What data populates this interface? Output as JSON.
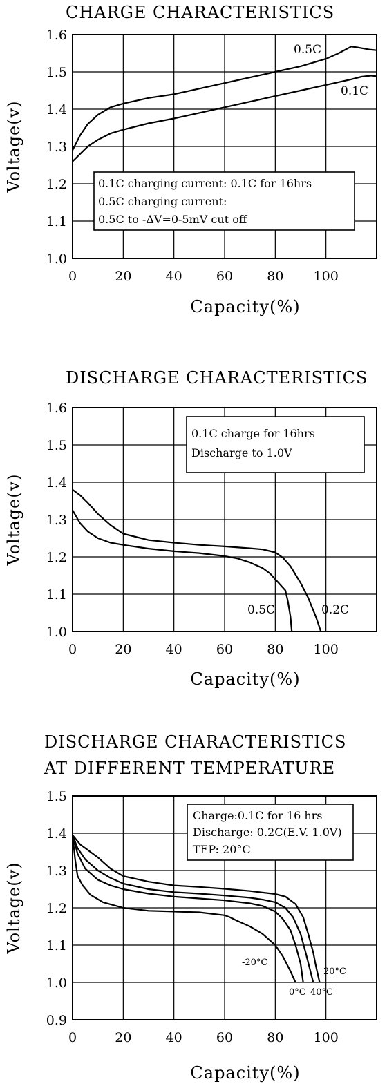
{
  "chart_data": [
    {
      "type": "line",
      "title": "CHARGE CHARACTERISTICS",
      "xlabel": "Capacity(%)",
      "ylabel": "Voltage(v)",
      "xlim": [
        0,
        120
      ],
      "ylim": [
        1.0,
        1.6
      ],
      "xticks": [
        "0",
        "20",
        "40",
        "60",
        "80",
        "100"
      ],
      "yticks": [
        "1.0",
        "1.1",
        "1.2",
        "1.3",
        "1.4",
        "1.5",
        "1.6"
      ],
      "grid": true,
      "annotation": [
        "0.1C charging current: 0.1C for 16hrs",
        "0.5C charging current:",
        "0.5C to -ΔV=0-5mV cut off"
      ],
      "series": [
        {
          "name": "0.5C",
          "x": [
            0,
            3,
            6,
            10,
            15,
            20,
            30,
            40,
            50,
            60,
            70,
            80,
            90,
            100,
            105,
            110,
            113,
            117,
            120
          ],
          "y": [
            1.29,
            1.33,
            1.36,
            1.385,
            1.405,
            1.415,
            1.43,
            1.44,
            1.455,
            1.47,
            1.485,
            1.5,
            1.515,
            1.535,
            1.55,
            1.568,
            1.565,
            1.56,
            1.558
          ]
        },
        {
          "name": "0.1C",
          "x": [
            0,
            3,
            6,
            10,
            15,
            20,
            30,
            40,
            50,
            60,
            70,
            80,
            90,
            100,
            110,
            114,
            118,
            120
          ],
          "y": [
            1.26,
            1.28,
            1.3,
            1.318,
            1.335,
            1.345,
            1.362,
            1.375,
            1.39,
            1.405,
            1.42,
            1.435,
            1.45,
            1.465,
            1.48,
            1.487,
            1.49,
            1.488
          ]
        }
      ]
    },
    {
      "type": "line",
      "title": "DISCHARGE CHARACTERISTICS",
      "xlabel": "Capacity(%)",
      "ylabel": "Voltage(v)",
      "xlim": [
        0,
        120
      ],
      "ylim": [
        1.0,
        1.6
      ],
      "xticks": [
        "0",
        "20",
        "40",
        "60",
        "80",
        "100"
      ],
      "yticks": [
        "1.0",
        "1.1",
        "1.2",
        "1.3",
        "1.4",
        "1.5",
        "1.6"
      ],
      "grid": true,
      "annotation": [
        "0.1C charge for 16hrs",
        "Discharge to 1.0V"
      ],
      "series": [
        {
          "name": "0.2C",
          "x": [
            0,
            3,
            6,
            10,
            15,
            20,
            30,
            40,
            50,
            60,
            70,
            75,
            80,
            83,
            86,
            90,
            93,
            96,
            98
          ],
          "y": [
            1.38,
            1.365,
            1.345,
            1.315,
            1.285,
            1.262,
            1.245,
            1.238,
            1.232,
            1.228,
            1.223,
            1.22,
            1.212,
            1.198,
            1.175,
            1.13,
            1.09,
            1.04,
            1.0
          ]
        },
        {
          "name": "0.5C",
          "x": [
            0,
            3,
            6,
            10,
            15,
            20,
            30,
            40,
            50,
            60,
            65,
            70,
            75,
            78,
            80,
            82,
            84,
            85,
            86,
            86.5
          ],
          "y": [
            1.325,
            1.29,
            1.268,
            1.25,
            1.238,
            1.232,
            1.222,
            1.215,
            1.21,
            1.202,
            1.196,
            1.185,
            1.17,
            1.155,
            1.14,
            1.125,
            1.11,
            1.08,
            1.04,
            1.0
          ]
        }
      ]
    },
    {
      "type": "line",
      "title": "DISCHARGE CHARACTERISTICS",
      "subtitle": "AT DIFFERENT TEMPERATURE",
      "xlabel": "Capacity(%)",
      "ylabel": "Voltage(v)",
      "xlim": [
        0,
        120
      ],
      "ylim": [
        0.9,
        1.5
      ],
      "xticks": [
        "0",
        "20",
        "40",
        "60",
        "80",
        "100"
      ],
      "yticks": [
        "0.9",
        "1.0",
        "1.1",
        "1.2",
        "1.3",
        "1.4",
        "1.5"
      ],
      "grid": true,
      "annotation": [
        "Charge:0.1C for 16 hrs",
        "Discharge: 0.2C(E.V. 1.0V)",
        "TEP: 20°C"
      ],
      "series": [
        {
          "name": "20°C",
          "x": [
            0,
            3,
            6,
            10,
            15,
            20,
            30,
            40,
            50,
            60,
            70,
            80,
            84,
            88,
            91,
            93,
            95,
            96,
            97.5
          ],
          "y": [
            1.395,
            1.37,
            1.355,
            1.335,
            1.305,
            1.285,
            1.27,
            1.26,
            1.256,
            1.251,
            1.245,
            1.237,
            1.23,
            1.21,
            1.175,
            1.13,
            1.08,
            1.045,
            1.0
          ]
        },
        {
          "name": "40°C",
          "x": [
            0,
            2,
            5,
            10,
            15,
            20,
            30,
            40,
            50,
            60,
            70,
            75,
            80,
            84,
            87,
            90,
            92,
            93.5,
            95
          ],
          "y": [
            1.395,
            1.36,
            1.33,
            1.3,
            1.28,
            1.265,
            1.25,
            1.242,
            1.238,
            1.233,
            1.227,
            1.222,
            1.215,
            1.2,
            1.175,
            1.13,
            1.08,
            1.04,
            1.0
          ]
        },
        {
          "name": "0°C",
          "x": [
            0,
            2,
            5,
            10,
            15,
            20,
            30,
            40,
            50,
            60,
            70,
            75,
            80,
            83,
            86,
            88,
            90,
            91
          ],
          "y": [
            1.395,
            1.345,
            1.305,
            1.275,
            1.26,
            1.25,
            1.238,
            1.23,
            1.225,
            1.22,
            1.212,
            1.205,
            1.19,
            1.17,
            1.14,
            1.1,
            1.05,
            1.0
          ]
        },
        {
          "name": "-20°C",
          "x": [
            0,
            1,
            2,
            4,
            7,
            12,
            20,
            30,
            40,
            50,
            60,
            62,
            65,
            70,
            75,
            80,
            83,
            86,
            88
          ],
          "y": [
            1.395,
            1.33,
            1.285,
            1.26,
            1.235,
            1.215,
            1.2,
            1.192,
            1.19,
            1.188,
            1.18,
            1.175,
            1.165,
            1.15,
            1.13,
            1.1,
            1.07,
            1.03,
            1.0
          ]
        }
      ]
    }
  ]
}
